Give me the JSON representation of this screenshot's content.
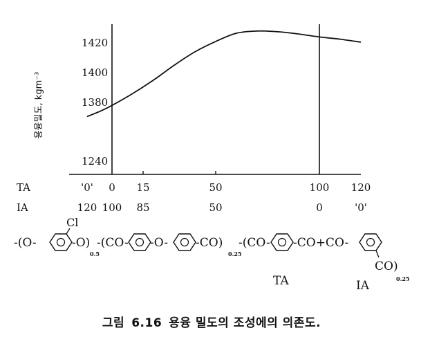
{
  "chart_data": {
    "type": "line",
    "ylabel": "용융밀도, kgm⁻³",
    "y_ticks": [
      "1420",
      "1400",
      "1380",
      "1240"
    ],
    "y_tick_values": [
      1420,
      1400,
      1380,
      1240
    ],
    "x_rows": [
      {
        "name": "TA",
        "ticks": [
          "'0'",
          "0",
          "15",
          "50",
          "100",
          "120"
        ]
      },
      {
        "name": "IA",
        "ticks": [
          "120",
          "100",
          "85",
          "50",
          "0",
          "'0'"
        ]
      }
    ],
    "x_tick_values": [
      -12,
      0,
      15,
      50,
      100,
      120
    ],
    "series": [
      {
        "x": [
          -12,
          -5,
          0,
          10,
          20,
          30,
          40,
          50,
          60,
          70,
          80,
          90,
          100,
          110,
          120
        ],
        "y": [
          1370.5,
          1374.5,
          1378,
          1386,
          1395,
          1405,
          1414,
          1421,
          1426.5,
          1428,
          1427.5,
          1426,
          1424,
          1422.5,
          1420.5
        ]
      }
    ]
  },
  "formula": {
    "open": "-(O-",
    "cl": "Cl",
    "seg1_tail": "-O)",
    "sub1": "0.5",
    "seg2_open": "-(CO-",
    "mid_o": "-O-",
    "seg2_tail": "-CO)",
    "sub2": "0.25",
    "seg3_open": "-(CO-",
    "seg3_mid": "-CO+CO-",
    "seg3_tail": "CO)",
    "sub3": "0.25",
    "ta_label": "TA",
    "ia_label": "IA"
  },
  "caption": {
    "fig_label": "그림",
    "fig_number": "6.16",
    "text": "용융 밀도의 조성에의 의존도."
  }
}
